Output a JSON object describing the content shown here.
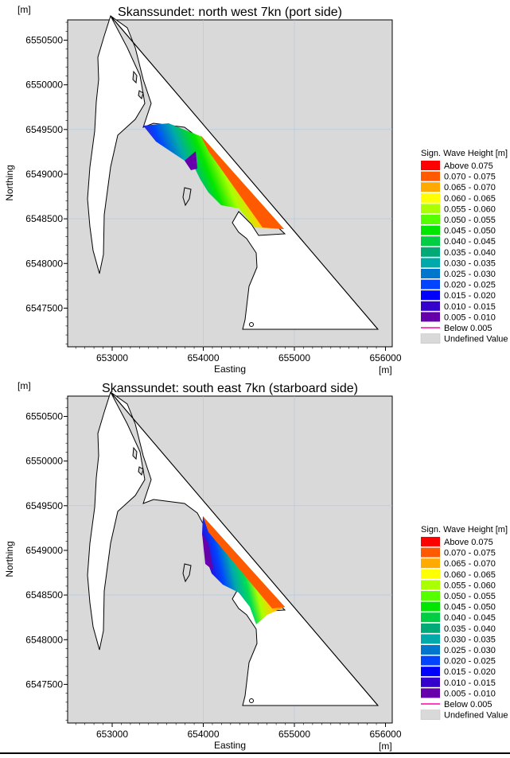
{
  "colors": {
    "background": "#d9d9d9",
    "land": "#ffffff",
    "grid": "#aac8e6",
    "legend_undefined": "#d9d9d9"
  },
  "legend": {
    "title": "Sign. Wave Height [m]",
    "items": [
      {
        "label": "Above  0.075",
        "color": "#ff0000"
      },
      {
        "label": "0.070 - 0.075",
        "color": "#ff5a00"
      },
      {
        "label": "0.065 - 0.070",
        "color": "#ffaa00"
      },
      {
        "label": "0.060 - 0.065",
        "color": "#ffff00"
      },
      {
        "label": "0.055 - 0.060",
        "color": "#aaff00"
      },
      {
        "label": "0.050 - 0.055",
        "color": "#55ff00"
      },
      {
        "label": "0.045 - 0.050",
        "color": "#00e600"
      },
      {
        "label": "0.040 - 0.045",
        "color": "#00cc44"
      },
      {
        "label": "0.035 - 0.040",
        "color": "#00aa77"
      },
      {
        "label": "0.030 - 0.035",
        "color": "#00aaaa"
      },
      {
        "label": "0.025 - 0.030",
        "color": "#0077cc"
      },
      {
        "label": "0.020 - 0.025",
        "color": "#0044ff"
      },
      {
        "label": "0.015 - 0.020",
        "color": "#0000ff"
      },
      {
        "label": "0.010 - 0.015",
        "color": "#3300cc"
      },
      {
        "label": "0.005 - 0.010",
        "color": "#6600aa"
      },
      {
        "label": "Below  0.005",
        "color": "#ff00aa"
      },
      {
        "label": "Undefined Value",
        "color": "#d9d9d9"
      }
    ]
  },
  "axes": {
    "ylabel": "Northing",
    "xlabel": "Easting",
    "y_unit": "[m]",
    "x_unit": "[m]",
    "xticks": [
      "653000",
      "654000",
      "655000",
      "656000"
    ],
    "yticks": [
      "6550500",
      "6550000",
      "6549500",
      "6549000",
      "6548500",
      "6548000",
      "6547500"
    ]
  },
  "panels": [
    {
      "title": "Skanssundet: north west 7kn (port side)",
      "scenario": "port"
    },
    {
      "title": "Skanssundet: south east 7kn (starboard side)",
      "scenario": "starboard"
    }
  ]
}
